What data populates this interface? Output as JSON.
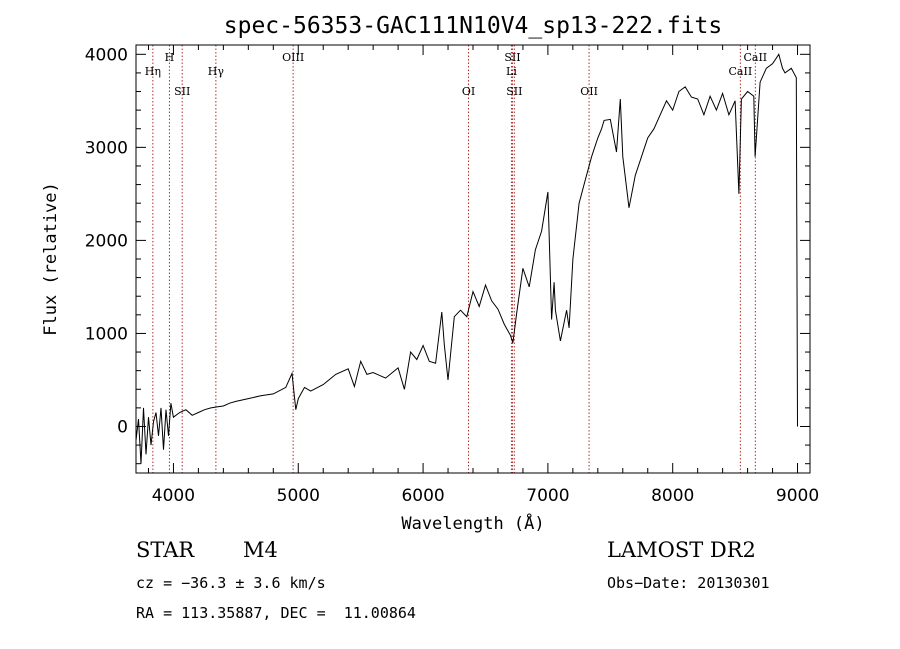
{
  "chart_data": {
    "type": "line",
    "title": "spec-56353-GAC111N10V4_sp13-222.fits",
    "xlabel": "Wavelength (Å)",
    "ylabel": "Flux (relative)",
    "xlim": [
      3700,
      9100
    ],
    "ylim": [
      -500,
      4100
    ],
    "xticks": [
      4000,
      5000,
      6000,
      7000,
      8000,
      9000
    ],
    "xtick_labels": [
      "4000",
      "5000",
      "6000",
      "7000",
      "8000",
      "9000"
    ],
    "yticks": [
      0,
      1000,
      2000,
      3000,
      4000
    ],
    "ytick_labels": [
      "0",
      "1000",
      "2000",
      "3000",
      "4000"
    ],
    "series": [
      {
        "name": "flux",
        "x": [
          3700,
          3720,
          3740,
          3760,
          3780,
          3800,
          3820,
          3840,
          3860,
          3880,
          3900,
          3920,
          3940,
          3960,
          3980,
          4000,
          4050,
          4100,
          4150,
          4200,
          4250,
          4300,
          4350,
          4400,
          4450,
          4500,
          4600,
          4700,
          4800,
          4900,
          4950,
          4980,
          5000,
          5050,
          5100,
          5200,
          5300,
          5400,
          5450,
          5500,
          5550,
          5600,
          5700,
          5800,
          5850,
          5900,
          5950,
          6000,
          6050,
          6100,
          6150,
          6170,
          6200,
          6250,
          6300,
          6350,
          6400,
          6450,
          6500,
          6550,
          6600,
          6650,
          6700,
          6720,
          6750,
          6800,
          6850,
          6900,
          6950,
          7000,
          7030,
          7050,
          7060,
          7100,
          7150,
          7170,
          7200,
          7250,
          7300,
          7350,
          7400,
          7430,
          7450,
          7500,
          7550,
          7580,
          7600,
          7650,
          7700,
          7750,
          7800,
          7850,
          7900,
          7950,
          8000,
          8050,
          8100,
          8150,
          8200,
          8250,
          8300,
          8350,
          8400,
          8450,
          8500,
          8530,
          8550,
          8600,
          8650,
          8660,
          8700,
          8750,
          8800,
          8850,
          8880,
          8900,
          8950,
          8990,
          9000
        ],
        "values": [
          -150,
          80,
          -400,
          200,
          -300,
          100,
          -200,
          50,
          150,
          -100,
          200,
          -250,
          180,
          -100,
          250,
          100,
          150,
          180,
          120,
          150,
          180,
          200,
          210,
          220,
          250,
          270,
          300,
          330,
          350,
          420,
          570,
          180,
          300,
          420,
          380,
          450,
          560,
          620,
          430,
          700,
          560,
          580,
          520,
          630,
          400,
          800,
          720,
          870,
          700,
          680,
          1230,
          880,
          500,
          1180,
          1250,
          1180,
          1450,
          1290,
          1520,
          1350,
          1260,
          1100,
          980,
          900,
          1220,
          1700,
          1500,
          1900,
          2100,
          2520,
          1150,
          1550,
          1250,
          920,
          1250,
          1060,
          1800,
          2400,
          2650,
          2900,
          3100,
          3200,
          3290,
          3300,
          2950,
          3520,
          2900,
          2350,
          2700,
          2900,
          3100,
          3200,
          3350,
          3500,
          3400,
          3600,
          3650,
          3540,
          3520,
          3350,
          3550,
          3400,
          3580,
          3350,
          3500,
          2500,
          3520,
          3600,
          3550,
          2900,
          3700,
          3850,
          3900,
          4000,
          3850,
          3800,
          3850,
          3750,
          0
        ]
      }
    ],
    "line_markers": [
      {
        "label": "Hη",
        "wavelength": 3835
      },
      {
        "label": "H",
        "wavelength": 3968
      },
      {
        "label": "SII",
        "wavelength": 4070
      },
      {
        "label": "Hγ",
        "wavelength": 4340
      },
      {
        "label": "OIII",
        "wavelength": 4959
      },
      {
        "label": "OI",
        "wavelength": 6364
      },
      {
        "label": "SII",
        "wavelength": 6716
      },
      {
        "label": "Li",
        "wavelength": 6708
      },
      {
        "label": "SII",
        "wavelength": 6731
      },
      {
        "label": "OII",
        "wavelength": 7330
      },
      {
        "label": "CaII",
        "wavelength": 8542
      },
      {
        "label": "CaII",
        "wavelength": 8662
      }
    ]
  },
  "info": {
    "class": "STAR",
    "subclass": "M4",
    "survey": "LAMOST DR2",
    "cz": "cz = −36.3 ± 3.6 km/s",
    "obs_date": "Obs−Date: 20130301",
    "coords": "RA = 113.35887, DEC =  11.00864"
  },
  "colors": {
    "marker_line": "#b03030",
    "spectrum": "#000000"
  }
}
